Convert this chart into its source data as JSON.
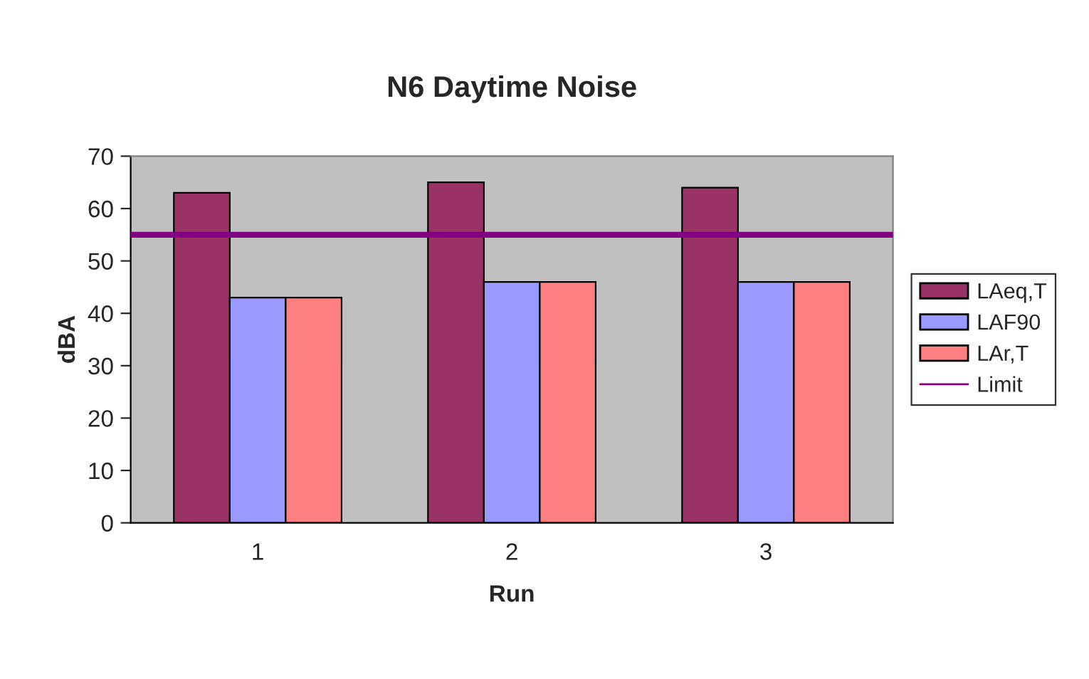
{
  "chart_data": {
    "type": "bar",
    "title": "N6 Daytime Noise",
    "xlabel": "Run",
    "ylabel": "dBA",
    "categories": [
      "1",
      "2",
      "3"
    ],
    "series": [
      {
        "name": "LAeq,T",
        "color": "#993366",
        "values": [
          63,
          65,
          64
        ]
      },
      {
        "name": "LAF90",
        "color": "#9999ff",
        "values": [
          43,
          46,
          46
        ]
      },
      {
        "name": "LAr,T",
        "color": "#ff8080",
        "values": [
          43,
          46,
          46
        ]
      }
    ],
    "ref_lines": [
      {
        "axis": "y",
        "value": 55,
        "label": "Limit",
        "color": "#800080"
      }
    ],
    "ylim": [
      0,
      70
    ],
    "yticks": [
      0,
      10,
      20,
      30,
      40,
      50,
      60,
      70
    ],
    "grid": false,
    "legend": "right"
  }
}
